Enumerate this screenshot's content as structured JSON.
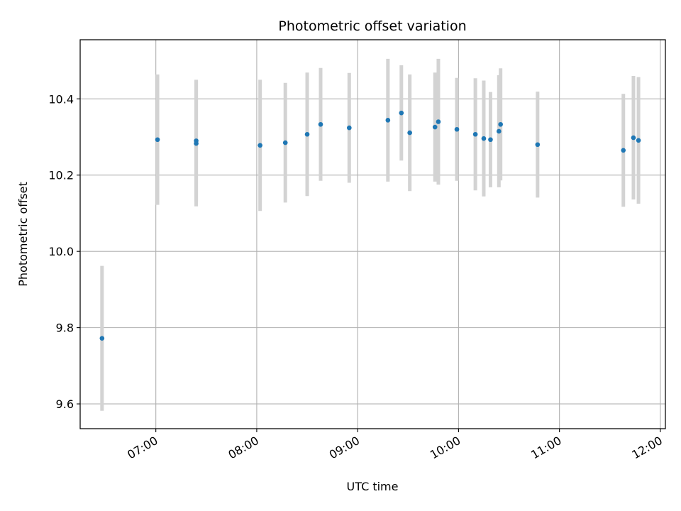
{
  "chart_data": {
    "type": "scatter",
    "title": "Photometric offset variation",
    "xlabel": "UTC time",
    "ylabel": "Photometric offset",
    "x_ticks": [
      "07:00",
      "08:00",
      "09:00",
      "10:00",
      "11:00",
      "12:00"
    ],
    "y_ticks": [
      "9.6",
      "9.8",
      "10.0",
      "10.2",
      "10.4"
    ],
    "xlim": [
      "06:15",
      "12:03"
    ],
    "ylim": [
      9.535,
      10.555
    ],
    "grid": true,
    "colors": {
      "point": "#1f77b4",
      "errorbar": "#d3d3d3",
      "grid": "#b0b0b0"
    },
    "points": [
      {
        "x": "06:28",
        "y": 9.772,
        "yerr": 0.19
      },
      {
        "x": "07:01",
        "y": 10.293,
        "yerr": 0.171
      },
      {
        "x": "07:24",
        "y": 10.29,
        "yerr": 0.16
      },
      {
        "x": "07:24",
        "y": 10.283,
        "yerr": 0.165
      },
      {
        "x": "08:02",
        "y": 10.278,
        "yerr": 0.172
      },
      {
        "x": "08:17",
        "y": 10.285,
        "yerr": 0.157
      },
      {
        "x": "08:30",
        "y": 10.307,
        "yerr": 0.162
      },
      {
        "x": "08:38",
        "y": 10.333,
        "yerr": 0.148
      },
      {
        "x": "08:55",
        "y": 10.324,
        "yerr": 0.144
      },
      {
        "x": "09:18",
        "y": 10.344,
        "yerr": 0.161
      },
      {
        "x": "09:26",
        "y": 10.363,
        "yerr": 0.125
      },
      {
        "x": "09:31",
        "y": 10.311,
        "yerr": 0.153
      },
      {
        "x": "09:46",
        "y": 10.326,
        "yerr": 0.143
      },
      {
        "x": "09:48",
        "y": 10.34,
        "yerr": 0.165
      },
      {
        "x": "09:59",
        "y": 10.32,
        "yerr": 0.135
      },
      {
        "x": "10:10",
        "y": 10.307,
        "yerr": 0.147
      },
      {
        "x": "10:15",
        "y": 10.296,
        "yerr": 0.152
      },
      {
        "x": "10:19",
        "y": 10.293,
        "yerr": 0.125
      },
      {
        "x": "10:24",
        "y": 10.315,
        "yerr": 0.147
      },
      {
        "x": "10:25",
        "y": 10.333,
        "yerr": 0.147
      },
      {
        "x": "10:47",
        "y": 10.28,
        "yerr": 0.139
      },
      {
        "x": "11:38",
        "y": 10.265,
        "yerr": 0.148
      },
      {
        "x": "11:44",
        "y": 10.298,
        "yerr": 0.162
      },
      {
        "x": "11:47",
        "y": 10.291,
        "yerr": 0.166
      }
    ]
  }
}
